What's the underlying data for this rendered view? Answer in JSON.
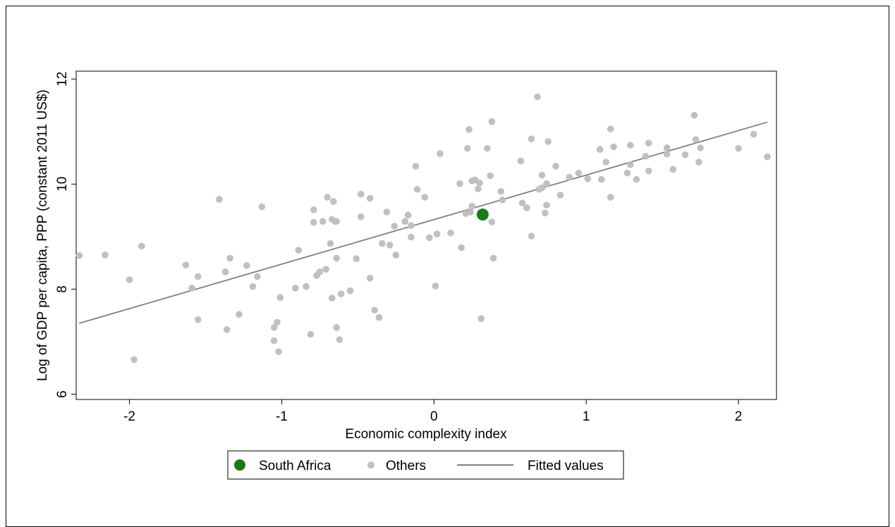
{
  "chart_data": {
    "type": "scatter",
    "xlabel": "Economic complexity index",
    "ylabel": "Log of GDP per capita, PPP (constant 2011 US$)",
    "xlim": [
      -2.35,
      2.25
    ],
    "ylim": [
      5.9,
      12.15
    ],
    "x_ticks": [
      -2,
      -1,
      0,
      1,
      2
    ],
    "y_ticks": [
      6,
      8,
      10,
      12
    ],
    "x_tick_labels": [
      "-2",
      "-1",
      "0",
      "1",
      "2"
    ],
    "y_tick_labels": [
      "6",
      "8",
      "10",
      "12"
    ],
    "grid": false,
    "legend_position": "bottom",
    "legend": [
      {
        "label": "South Africa",
        "marker": "large-dot",
        "color": "#1a7a1a"
      },
      {
        "label": "Others",
        "marker": "dot",
        "color": "#c0c0c0"
      },
      {
        "label": "Fitted values",
        "marker": "line",
        "color": "#808080"
      }
    ],
    "series": [
      {
        "name": "South Africa",
        "color": "#1a7a1a",
        "points": [
          [
            0.32,
            9.42
          ]
        ]
      },
      {
        "name": "Others",
        "color": "#c0c0c0",
        "points": [
          [
            -2.33,
            8.64
          ],
          [
            -2.16,
            8.65
          ],
          [
            -2.0,
            8.18
          ],
          [
            -1.92,
            8.82
          ],
          [
            -1.97,
            6.66
          ],
          [
            -1.63,
            8.46
          ],
          [
            -1.59,
            8.02
          ],
          [
            -1.55,
            8.24
          ],
          [
            -1.55,
            7.42
          ],
          [
            -1.41,
            9.71
          ],
          [
            -1.37,
            8.33
          ],
          [
            -1.36,
            7.23
          ],
          [
            -1.34,
            8.59
          ],
          [
            -1.28,
            7.52
          ],
          [
            -1.23,
            8.45
          ],
          [
            -1.19,
            8.05
          ],
          [
            -1.16,
            8.24
          ],
          [
            -1.13,
            9.57
          ],
          [
            -1.05,
            7.27
          ],
          [
            -1.05,
            7.02
          ],
          [
            -1.03,
            7.37
          ],
          [
            -1.02,
            6.81
          ],
          [
            -1.01,
            7.84
          ],
          [
            -0.91,
            8.02
          ],
          [
            -0.89,
            8.74
          ],
          [
            -0.84,
            8.05
          ],
          [
            -0.81,
            7.14
          ],
          [
            -0.79,
            9.51
          ],
          [
            -0.79,
            9.27
          ],
          [
            -0.77,
            8.26
          ],
          [
            -0.75,
            8.33
          ],
          [
            -0.73,
            9.29
          ],
          [
            -0.71,
            8.38
          ],
          [
            -0.7,
            9.75
          ],
          [
            -0.68,
            8.87
          ],
          [
            -0.67,
            9.33
          ],
          [
            -0.67,
            7.83
          ],
          [
            -0.66,
            9.67
          ],
          [
            -0.65,
            9.29
          ],
          [
            -0.64,
            9.29
          ],
          [
            -0.64,
            8.59
          ],
          [
            -0.64,
            7.27
          ],
          [
            -0.62,
            7.04
          ],
          [
            -0.61,
            7.91
          ],
          [
            -0.55,
            7.97
          ],
          [
            -0.51,
            8.58
          ],
          [
            -0.48,
            9.81
          ],
          [
            -0.48,
            9.38
          ],
          [
            -0.42,
            9.73
          ],
          [
            -0.42,
            8.21
          ],
          [
            -0.39,
            7.6
          ],
          [
            -0.36,
            7.46
          ],
          [
            -0.34,
            8.87
          ],
          [
            -0.31,
            9.47
          ],
          [
            -0.29,
            8.84
          ],
          [
            -0.26,
            9.2
          ],
          [
            -0.25,
            8.65
          ],
          [
            -0.19,
            9.29
          ],
          [
            -0.17,
            9.41
          ],
          [
            -0.15,
            9.21
          ],
          [
            -0.15,
            8.99
          ],
          [
            -0.12,
            10.34
          ],
          [
            -0.11,
            9.9
          ],
          [
            -0.06,
            9.75
          ],
          [
            -0.03,
            8.98
          ],
          [
            0.02,
            9.05
          ],
          [
            0.01,
            8.06
          ],
          [
            0.04,
            10.58
          ],
          [
            0.11,
            9.07
          ],
          [
            0.17,
            10.01
          ],
          [
            0.18,
            8.79
          ],
          [
            0.21,
            9.44
          ],
          [
            0.22,
            10.68
          ],
          [
            0.23,
            11.04
          ],
          [
            0.24,
            9.47
          ],
          [
            0.25,
            10.06
          ],
          [
            0.25,
            9.58
          ],
          [
            0.27,
            10.08
          ],
          [
            0.29,
            9.91
          ],
          [
            0.3,
            10.02
          ],
          [
            0.31,
            7.44
          ],
          [
            0.35,
            10.68
          ],
          [
            0.37,
            10.16
          ],
          [
            0.38,
            11.19
          ],
          [
            0.38,
            9.28
          ],
          [
            0.39,
            8.59
          ],
          [
            0.44,
            9.86
          ],
          [
            0.45,
            9.7
          ],
          [
            0.57,
            10.44
          ],
          [
            0.58,
            9.64
          ],
          [
            0.61,
            9.55
          ],
          [
            0.64,
            10.86
          ],
          [
            0.64,
            9.01
          ],
          [
            0.68,
            11.66
          ],
          [
            0.69,
            9.9
          ],
          [
            0.71,
            9.93
          ],
          [
            0.71,
            10.17
          ],
          [
            0.73,
            9.45
          ],
          [
            0.74,
            10.01
          ],
          [
            0.74,
            9.6
          ],
          [
            0.75,
            10.81
          ],
          [
            0.8,
            10.34
          ],
          [
            0.83,
            9.79
          ],
          [
            0.89,
            10.13
          ],
          [
            0.95,
            10.21
          ],
          [
            1.01,
            10.1
          ],
          [
            1.09,
            10.66
          ],
          [
            1.1,
            10.09
          ],
          [
            1.13,
            10.42
          ],
          [
            1.16,
            11.05
          ],
          [
            1.16,
            9.75
          ],
          [
            1.18,
            10.71
          ],
          [
            1.27,
            10.21
          ],
          [
            1.29,
            10.74
          ],
          [
            1.29,
            10.37
          ],
          [
            1.33,
            10.09
          ],
          [
            1.39,
            10.53
          ],
          [
            1.41,
            10.78
          ],
          [
            1.41,
            10.25
          ],
          [
            1.53,
            10.69
          ],
          [
            1.53,
            10.57
          ],
          [
            1.57,
            10.28
          ],
          [
            1.65,
            10.56
          ],
          [
            1.71,
            11.31
          ],
          [
            1.72,
            10.85
          ],
          [
            1.74,
            10.42
          ],
          [
            1.75,
            10.69
          ],
          [
            2.0,
            10.68
          ],
          [
            2.1,
            10.95
          ],
          [
            2.19,
            10.52
          ]
        ]
      },
      {
        "name": "Fitted values",
        "color": "#808080",
        "line": [
          [
            -2.33,
            7.35
          ],
          [
            2.19,
            11.18
          ]
        ]
      }
    ]
  }
}
